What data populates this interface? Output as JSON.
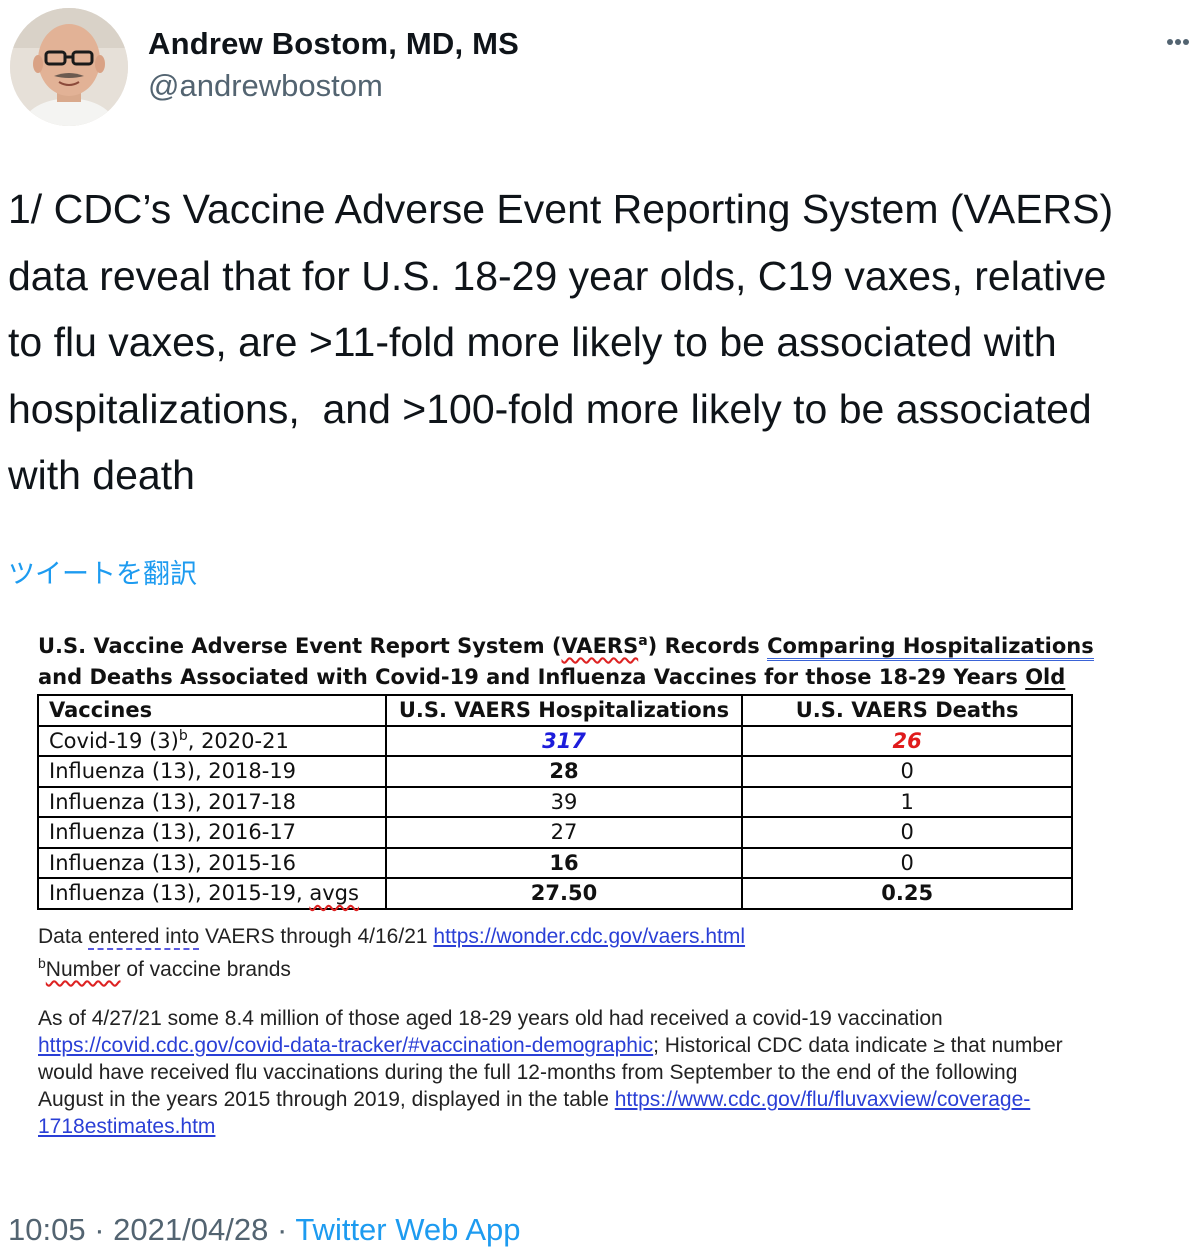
{
  "author": {
    "name": "Andrew Bostom, MD, MS",
    "handle": "@andrewbostom"
  },
  "tweet": {
    "text": "1/ CDC’s Vaccine Adverse Event Reporting System (VAERS) data reveal that for U.S. 18-29 year olds, C19 vaxes, relative to flu vaxes, are >11-fold more likely to be associated with hospitalizations,  and >100-fold more likely to be associated with death",
    "lines": [
      "1/ CDC’s Vaccine Adverse Event Reporting System (VAERS)",
      "data reveal that for U.S. 18-29 year olds, C19 vaxes, relative",
      "to flu vaxes, are >11-fold more likely to be associated with",
      "hospitalizations,  and >100-fold more likely to be associated",
      "with death"
    ],
    "translate_label": "ツイートを翻訳",
    "time": "10:05",
    "date": "2021/04/28",
    "separator": "·",
    "source": "Twitter Web App"
  },
  "image": {
    "title_line1_a": "U.S.  Vaccine Adverse Event Report System (",
    "title_line1_vaers": "VAERS",
    "title_line1_sup": "a",
    "title_line1_b": ") Records ",
    "title_line1_c": "Comparing  Hospitalizations",
    "title_line2_a": "and Deaths Associated with Covid-19 and Influenza Vaccines for those 18-29 Years ",
    "title_line2_b": "Old",
    "table": {
      "headers": [
        "Vaccines",
        "U.S. VAERS Hospitalizations",
        "U.S. VAERS Deaths"
      ],
      "rows": [
        {
          "vaccine": "Covid-19 (3)",
          "sup": "b",
          "vaccine_suffix": ", 2020-21",
          "hosp": "317",
          "deaths": "26"
        },
        {
          "vaccine": "Influenza (13), 2018-19",
          "hosp": "28",
          "deaths": "0"
        },
        {
          "vaccine": "Influenza (13), 2017-18",
          "hosp": "39",
          "deaths": "1"
        },
        {
          "vaccine": "Influenza (13), 2016-17",
          "hosp": "27",
          "deaths": "0"
        },
        {
          "vaccine": "Influenza (13), 2015-16",
          "hosp": "16",
          "deaths": "0"
        },
        {
          "vaccine": "Influenza (13), 2015-19, ",
          "vaccine_underlined": "avgs",
          "hosp": "27.50",
          "deaths": "0.25"
        }
      ]
    },
    "note1_a": "Data ",
    "note1_b": "entered into",
    "note1_c": " VAERS through 4/16/21 ",
    "note1_link": "https://wonder.cdc.gov/vaers.html",
    "note2_sup": "b",
    "note2_a": "Number",
    "note2_b": " of vaccine brands",
    "para_line1": "As of 4/27/21 some 8.4 million of those aged 18-29 years old had received a covid-19 vaccination",
    "para_line2_link": "https://covid.cdc.gov/covid-data-tracker/#vaccination-demographic",
    "para_line2_rest": "; Historical CDC data indicate ≥ that number",
    "para_line3": "would have received flu vaccinations during the full 12-months from September to the end of the following",
    "para_line4_a": "August in the years 2015 through 2019, displayed in the table ",
    "para_line4_link": "https://www.cdc.gov/flu/fluvaxview/coverage-",
    "para_line5_link": "1718estimates.htm"
  },
  "colors": {
    "accent": "#1d9bf0",
    "text": "#0f1419",
    "muted": "#536471",
    "covid_hosp": "#1d1ddb",
    "covid_deaths": "#e01b1b"
  },
  "icons": {
    "more": "more-dots-icon",
    "avatar": "avatar"
  }
}
